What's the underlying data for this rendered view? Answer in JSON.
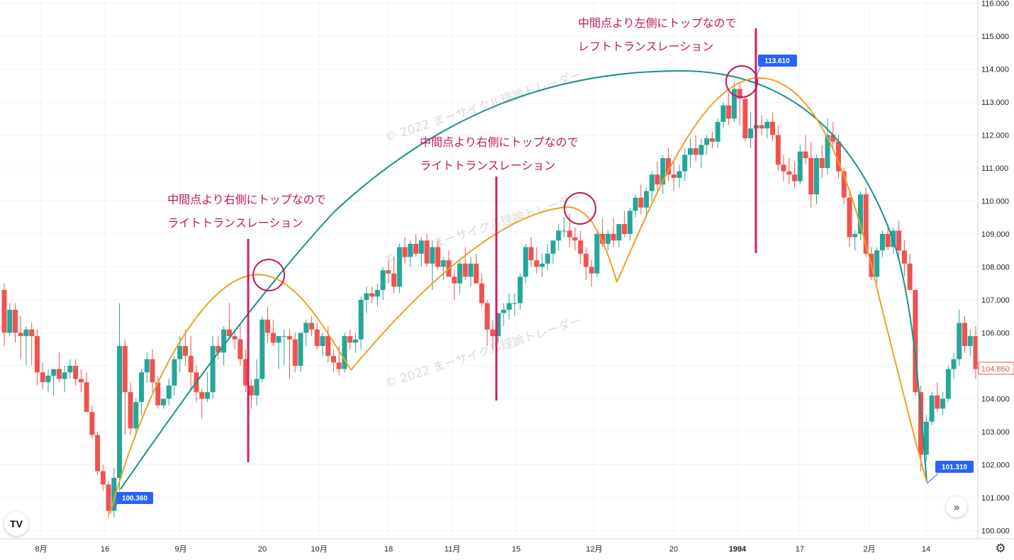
{
  "chart_data": {
    "type": "candlestick",
    "y_axis": {
      "min": 100.0,
      "max": 116.0,
      "tick_labels": [
        "101.000",
        "102.000",
        "103.000",
        "104.000",
        "105.000",
        "106.000",
        "107.000",
        "108.000",
        "109.000",
        "110.000",
        "111.000",
        "112.000",
        "113.000",
        "114.000",
        "115.000",
        "116.000",
        "100.000"
      ],
      "tick_values": [
        101,
        102,
        103,
        104,
        105,
        106,
        107,
        108,
        109,
        110,
        111,
        112,
        113,
        114,
        115,
        116,
        100
      ]
    },
    "x_axis": {
      "tick_labels": [
        "8月",
        "16",
        "9月",
        "20",
        "10月",
        "18",
        "11月",
        "15",
        "12月",
        "20",
        "1994",
        "17",
        "2月",
        "14"
      ],
      "bold_labels": [
        "1994"
      ]
    },
    "grid": true,
    "last_price": "104.860",
    "markers": {
      "low1": "100.360",
      "high": "113.610",
      "low2": "101.310"
    },
    "annotations": [
      {
        "line1": "中間点より右側にトップなので",
        "line2": "ライトトランスレーション"
      },
      {
        "line1": "中間点より右側にトップなので",
        "line2": "ライトトランスレーション"
      },
      {
        "line1": "中間点より左側にトップなので",
        "line2": "レフトトランスレーション"
      }
    ],
    "watermark": "© 2022 まーサイクル理論トレーダー",
    "colors": {
      "up": "#26a69a",
      "down": "#ef5350",
      "long_cycle": "#15948b",
      "short_cycle": "#f0a020",
      "annotation": "#c2185b",
      "price_label": "#2962ff",
      "grid": "#f0f3fa"
    },
    "candles_ohlc": [
      [
        107.3,
        107.5,
        105.6,
        106.0
      ],
      [
        106.0,
        106.9,
        105.9,
        106.7
      ],
      [
        106.7,
        106.9,
        105.7,
        106.0
      ],
      [
        106.0,
        106.5,
        105.2,
        105.9
      ],
      [
        105.9,
        106.2,
        105.0,
        106.1
      ],
      [
        106.1,
        106.3,
        105.0,
        105.9
      ],
      [
        105.9,
        106.1,
        104.4,
        104.8
      ],
      [
        104.8,
        105.1,
        104.3,
        104.5
      ],
      [
        104.5,
        104.9,
        104.2,
        104.7
      ],
      [
        104.7,
        104.8,
        104.1,
        104.9
      ],
      [
        104.9,
        105.4,
        104.5,
        104.6
      ],
      [
        104.6,
        105.0,
        104.2,
        104.8
      ],
      [
        104.8,
        105.2,
        104.6,
        105.0
      ],
      [
        105.0,
        105.2,
        104.4,
        104.6
      ],
      [
        104.6,
        104.9,
        104.2,
        104.5
      ],
      [
        104.5,
        104.8,
        103.7,
        103.6
      ],
      [
        103.6,
        103.8,
        102.8,
        102.9
      ],
      [
        102.9,
        103.0,
        101.7,
        101.8
      ],
      [
        101.8,
        102.0,
        101.2,
        101.4
      ],
      [
        101.4,
        101.5,
        100.4,
        100.6
      ],
      [
        100.6,
        101.9,
        100.4,
        101.6
      ],
      [
        101.6,
        106.9,
        101.2,
        105.6
      ],
      [
        105.6,
        105.8,
        102.9,
        104.2
      ],
      [
        104.2,
        104.5,
        102.9,
        103.1
      ],
      [
        103.1,
        104.0,
        102.9,
        103.9
      ],
      [
        103.9,
        104.9,
        103.5,
        104.8
      ],
      [
        104.8,
        105.4,
        104.5,
        105.2
      ],
      [
        105.2,
        105.5,
        104.2,
        104.5
      ],
      [
        104.5,
        104.7,
        103.7,
        103.8
      ],
      [
        103.8,
        104.0,
        103.7,
        104.0
      ],
      [
        104.0,
        104.6,
        103.8,
        104.4
      ],
      [
        104.4,
        105.3,
        104.1,
        105.2
      ],
      [
        105.2,
        105.9,
        104.8,
        105.6
      ],
      [
        105.6,
        106.1,
        105.0,
        105.3
      ],
      [
        105.3,
        105.9,
        104.3,
        104.8
      ],
      [
        104.8,
        105.0,
        103.9,
        104.2
      ],
      [
        104.2,
        104.3,
        103.4,
        104.0
      ],
      [
        104.0,
        104.8,
        103.9,
        104.2
      ],
      [
        104.2,
        105.9,
        104.0,
        105.6
      ],
      [
        105.6,
        105.9,
        105.2,
        105.4
      ],
      [
        105.4,
        106.2,
        105.0,
        106.1
      ],
      [
        106.1,
        106.9,
        105.8,
        105.9
      ],
      [
        105.9,
        106.1,
        105.5,
        105.8
      ],
      [
        105.8,
        106.3,
        105.0,
        105.2
      ],
      [
        105.2,
        105.5,
        104.2,
        104.4
      ],
      [
        104.4,
        104.6,
        103.7,
        104.1
      ],
      [
        104.1,
        105.2,
        103.8,
        104.6
      ],
      [
        104.6,
        106.5,
        104.5,
        106.4
      ],
      [
        106.4,
        106.8,
        105.7,
        106.0
      ],
      [
        106.0,
        106.4,
        105.6,
        105.7
      ],
      [
        105.7,
        105.9,
        104.9,
        105.9
      ],
      [
        105.9,
        106.1,
        105.0,
        105.9
      ],
      [
        105.9,
        106.1,
        104.6,
        105.8
      ],
      [
        105.8,
        106.0,
        104.8,
        105.0
      ],
      [
        105.0,
        106.0,
        104.8,
        106.0
      ],
      [
        106.0,
        106.4,
        105.6,
        106.3
      ],
      [
        106.3,
        106.5,
        105.9,
        106.1
      ],
      [
        106.1,
        106.3,
        105.5,
        105.6
      ],
      [
        105.6,
        106.0,
        105.3,
        105.9
      ],
      [
        105.9,
        106.2,
        105.1,
        105.3
      ],
      [
        105.3,
        105.5,
        104.8,
        105.1
      ],
      [
        105.1,
        105.6,
        104.7,
        104.9
      ],
      [
        104.9,
        106.0,
        104.8,
        105.9
      ],
      [
        105.9,
        106.1,
        105.5,
        105.7
      ],
      [
        105.7,
        106.0,
        105.4,
        105.8
      ],
      [
        105.8,
        107.1,
        105.5,
        107.0
      ],
      [
        107.0,
        107.4,
        106.6,
        107.2
      ],
      [
        107.2,
        107.4,
        106.9,
        107.1
      ],
      [
        107.1,
        107.5,
        106.8,
        107.3
      ],
      [
        107.3,
        108.0,
        107.0,
        107.9
      ],
      [
        107.9,
        108.2,
        107.5,
        107.8
      ],
      [
        107.8,
        108.3,
        107.2,
        107.4
      ],
      [
        107.4,
        108.7,
        107.2,
        108.6
      ],
      [
        108.6,
        108.9,
        108.1,
        108.3
      ],
      [
        108.3,
        108.8,
        108.0,
        108.7
      ],
      [
        108.7,
        109.0,
        108.3,
        108.4
      ],
      [
        108.4,
        108.9,
        108.0,
        108.8
      ],
      [
        108.8,
        109.0,
        108.0,
        108.1
      ],
      [
        108.1,
        108.8,
        107.3,
        108.6
      ],
      [
        108.6,
        108.8,
        107.9,
        108.0
      ],
      [
        108.0,
        108.3,
        107.6,
        108.2
      ],
      [
        108.2,
        108.5,
        107.7,
        107.7
      ],
      [
        107.7,
        107.9,
        107.0,
        107.5
      ],
      [
        107.5,
        108.2,
        107.2,
        108.1
      ],
      [
        108.1,
        108.6,
        107.6,
        107.7
      ],
      [
        107.7,
        108.3,
        107.4,
        108.1
      ],
      [
        108.1,
        108.4,
        107.5,
        107.5
      ],
      [
        107.5,
        107.8,
        106.8,
        106.9
      ],
      [
        106.9,
        107.0,
        105.6,
        106.1
      ],
      [
        106.1,
        106.4,
        105.5,
        105.9
      ],
      [
        105.9,
        106.5,
        105.7,
        106.6
      ],
      [
        106.6,
        106.9,
        106.2,
        106.7
      ],
      [
        106.7,
        107.2,
        106.4,
        106.9
      ],
      [
        106.9,
        107.2,
        106.5,
        106.9
      ],
      [
        106.9,
        107.8,
        106.7,
        107.7
      ],
      [
        107.7,
        108.7,
        107.5,
        108.6
      ],
      [
        108.6,
        108.9,
        108.0,
        108.2
      ],
      [
        108.2,
        108.6,
        107.8,
        108.0
      ],
      [
        108.0,
        108.4,
        107.7,
        108.1
      ],
      [
        108.1,
        108.7,
        107.9,
        108.4
      ],
      [
        108.4,
        108.8,
        108.1,
        108.8
      ],
      [
        108.8,
        109.3,
        108.5,
        109.1
      ],
      [
        109.1,
        109.5,
        108.9,
        109.1
      ],
      [
        109.1,
        109.6,
        108.6,
        108.9
      ],
      [
        108.9,
        109.2,
        108.5,
        108.8
      ],
      [
        108.8,
        109.1,
        108.1,
        108.4
      ],
      [
        108.4,
        108.6,
        107.6,
        108.0
      ],
      [
        108.0,
        108.2,
        107.4,
        107.8
      ],
      [
        107.8,
        109.1,
        107.7,
        109.0
      ],
      [
        109.0,
        109.5,
        108.6,
        108.7
      ],
      [
        108.7,
        109.1,
        108.5,
        109.0
      ],
      [
        109.0,
        109.5,
        108.6,
        108.8
      ],
      [
        108.8,
        109.3,
        108.6,
        109.3
      ],
      [
        109.3,
        109.7,
        108.9,
        109.0
      ],
      [
        109.0,
        109.8,
        108.8,
        109.7
      ],
      [
        109.7,
        110.2,
        109.5,
        110.1
      ],
      [
        110.1,
        110.5,
        109.6,
        109.8
      ],
      [
        109.8,
        110.4,
        109.5,
        110.3
      ],
      [
        110.3,
        110.9,
        110.0,
        110.8
      ],
      [
        110.8,
        111.2,
        110.3,
        110.5
      ],
      [
        110.5,
        111.4,
        110.2,
        111.3
      ],
      [
        111.3,
        111.6,
        110.6,
        110.8
      ],
      [
        110.8,
        111.2,
        110.3,
        110.7
      ],
      [
        110.7,
        111.1,
        110.4,
        110.9
      ],
      [
        110.9,
        111.6,
        110.6,
        111.4
      ],
      [
        111.4,
        111.9,
        111.0,
        111.6
      ],
      [
        111.6,
        112.0,
        111.2,
        111.4
      ],
      [
        111.4,
        111.9,
        111.0,
        111.7
      ],
      [
        111.7,
        112.0,
        111.4,
        111.9
      ],
      [
        111.9,
        112.1,
        111.6,
        111.8
      ],
      [
        111.8,
        112.5,
        111.6,
        112.4
      ],
      [
        112.4,
        113.0,
        112.2,
        112.9
      ],
      [
        112.9,
        113.3,
        112.3,
        112.5
      ],
      [
        112.5,
        113.6,
        112.4,
        113.4
      ],
      [
        113.4,
        113.6,
        112.3,
        113.1
      ],
      [
        113.1,
        113.2,
        111.8,
        111.9
      ],
      [
        111.9,
        112.7,
        111.6,
        112.2
      ],
      [
        112.2,
        112.5,
        111.8,
        112.3
      ],
      [
        112.3,
        112.6,
        112.0,
        112.2
      ],
      [
        112.2,
        112.5,
        111.9,
        112.4
      ],
      [
        112.4,
        112.7,
        111.8,
        112.0
      ],
      [
        112.0,
        112.3,
        110.9,
        111.1
      ],
      [
        111.1,
        111.4,
        110.6,
        110.9
      ],
      [
        110.9,
        111.3,
        110.5,
        110.8
      ],
      [
        110.8,
        111.2,
        110.4,
        110.6
      ],
      [
        110.6,
        111.7,
        110.5,
        111.5
      ],
      [
        111.5,
        112.0,
        111.1,
        111.3
      ],
      [
        111.3,
        111.8,
        109.8,
        110.2
      ],
      [
        110.2,
        111.4,
        109.9,
        111.3
      ],
      [
        111.3,
        111.7,
        110.7,
        111.0
      ],
      [
        111.0,
        112.5,
        110.8,
        112.0
      ],
      [
        112.0,
        112.4,
        111.6,
        111.8
      ],
      [
        111.8,
        112.0,
        110.7,
        110.9
      ],
      [
        110.9,
        111.0,
        109.9,
        110.1
      ],
      [
        110.1,
        110.3,
        108.6,
        108.9
      ],
      [
        108.9,
        109.1,
        108.5,
        109.0
      ],
      [
        109.0,
        110.3,
        108.8,
        110.2
      ],
      [
        110.2,
        110.4,
        108.3,
        108.4
      ],
      [
        108.4,
        108.6,
        107.6,
        107.7
      ],
      [
        107.7,
        108.6,
        107.5,
        108.5
      ],
      [
        108.5,
        109.1,
        108.3,
        109.0
      ],
      [
        109.0,
        109.3,
        108.5,
        108.6
      ],
      [
        108.6,
        109.2,
        108.4,
        109.1
      ],
      [
        109.1,
        109.4,
        108.2,
        108.5
      ],
      [
        108.5,
        108.8,
        107.7,
        108.1
      ],
      [
        108.1,
        108.4,
        107.5,
        107.3
      ],
      [
        107.3,
        106.7,
        104.1,
        104.2
      ],
      [
        104.2,
        104.4,
        101.8,
        102.3
      ],
      [
        102.3,
        103.5,
        102.1,
        103.3
      ],
      [
        103.3,
        104.2,
        103.2,
        104.1
      ],
      [
        104.1,
        104.5,
        103.6,
        103.7
      ],
      [
        103.7,
        104.2,
        103.5,
        104.0
      ],
      [
        104.0,
        105.0,
        103.9,
        104.9
      ],
      [
        104.9,
        105.4,
        104.6,
        105.2
      ],
      [
        105.2,
        106.7,
        105.0,
        106.3
      ],
      [
        106.3,
        106.5,
        105.4,
        105.6
      ],
      [
        105.6,
        106.1,
        105.3,
        105.9
      ],
      [
        105.9,
        106.2,
        104.6,
        104.9
      ]
    ]
  }
}
